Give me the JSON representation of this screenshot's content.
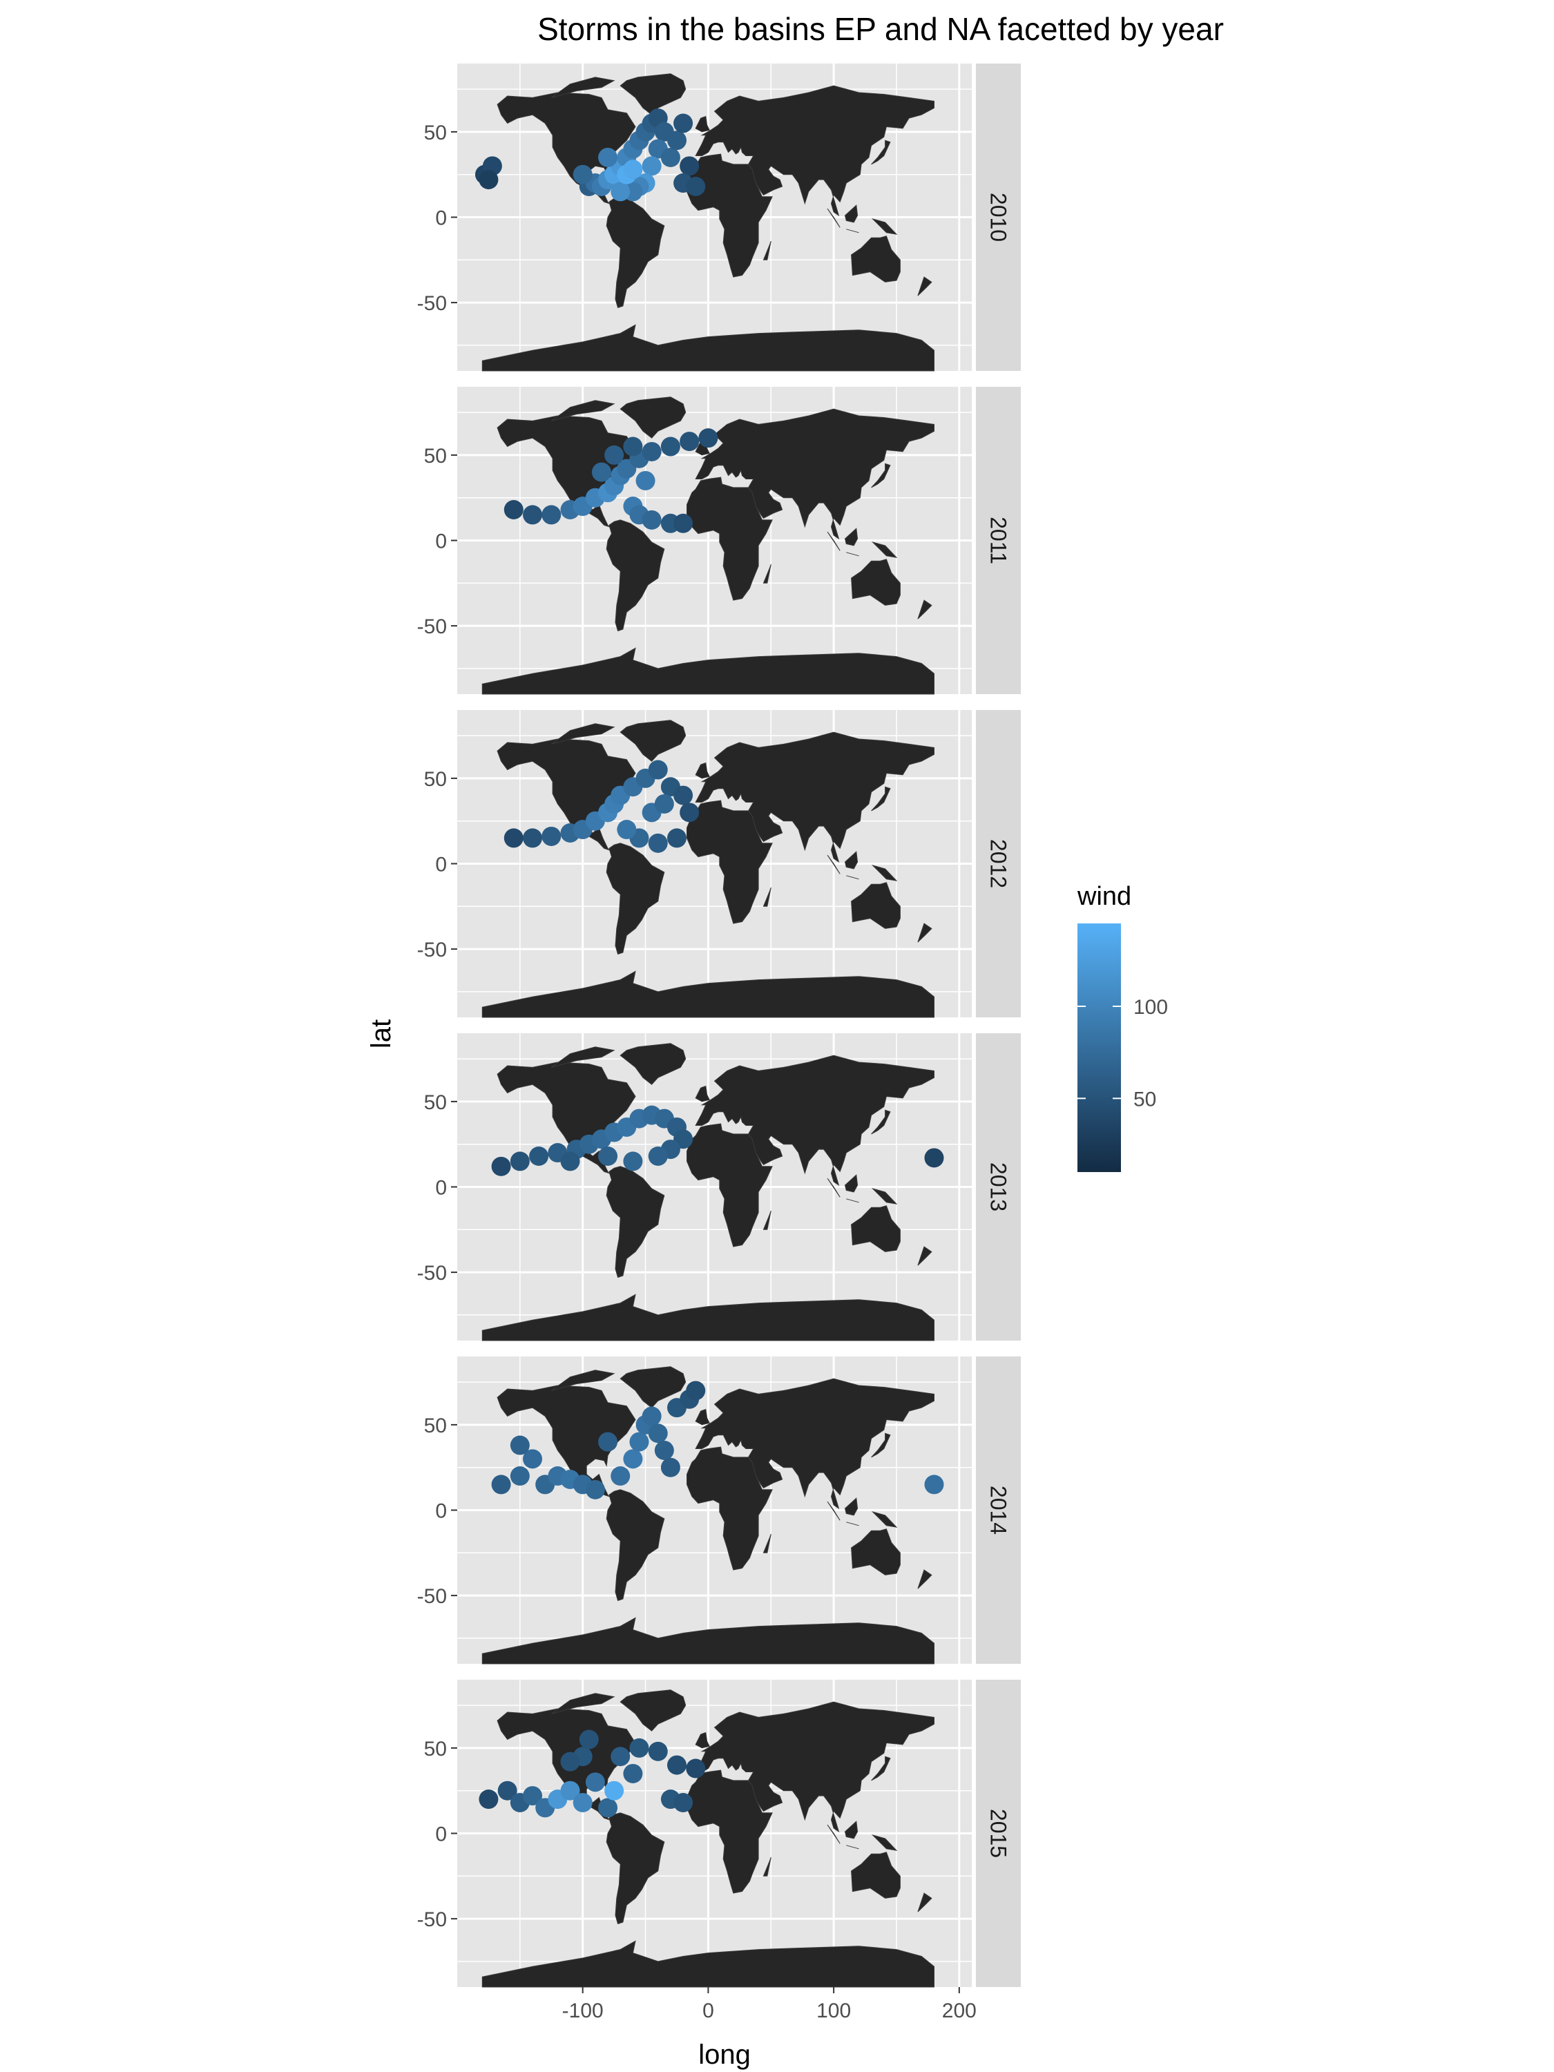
{
  "chart_data": {
    "type": "scatter",
    "title": "Storms in the basins EP and NA facetted by year",
    "xlabel": "long",
    "ylabel": "lat",
    "xlim": [
      -200,
      210
    ],
    "ylim": [
      -90,
      90
    ],
    "x_ticks": [
      -100,
      0,
      100,
      200
    ],
    "y_ticks": [
      -50,
      0,
      50
    ],
    "x_tick_labels": [
      "-100",
      "0",
      "100",
      "200"
    ],
    "y_tick_labels": [
      "-50",
      "0",
      "50"
    ],
    "grid": true,
    "facet_by": "year",
    "legend": {
      "title": "wind",
      "position": "right",
      "range": [
        10,
        145
      ],
      "ticks": [
        50,
        100
      ],
      "tick_labels": [
        "50",
        "100"
      ],
      "colors": {
        "low": "#132B43",
        "high": "#56B1F7"
      }
    },
    "colors": {
      "land": "#262626",
      "panel_bg": "#e5e5e5",
      "strip_bg": "#d9d9d9",
      "grid": "#ffffff"
    },
    "facets": [
      {
        "year": "2010",
        "points": [
          [
            -178,
            25,
            35
          ],
          [
            -172,
            30,
            40
          ],
          [
            -175,
            22,
            30
          ],
          [
            -95,
            18,
            60
          ],
          [
            -90,
            20,
            80
          ],
          [
            -85,
            18,
            90
          ],
          [
            -80,
            22,
            110
          ],
          [
            -75,
            25,
            130
          ],
          [
            -70,
            30,
            120
          ],
          [
            -65,
            35,
            100
          ],
          [
            -60,
            40,
            90
          ],
          [
            -55,
            45,
            80
          ],
          [
            -50,
            50,
            70
          ],
          [
            -45,
            55,
            60
          ],
          [
            -40,
            58,
            50
          ],
          [
            -35,
            50,
            60
          ],
          [
            -40,
            40,
            80
          ],
          [
            -45,
            30,
            110
          ],
          [
            -50,
            20,
            120
          ],
          [
            -55,
            18,
            100
          ],
          [
            -60,
            15,
            90
          ],
          [
            -30,
            35,
            70
          ],
          [
            -25,
            45,
            60
          ],
          [
            -20,
            55,
            50
          ],
          [
            -15,
            30,
            40
          ],
          [
            -20,
            20,
            50
          ],
          [
            -10,
            18,
            45
          ],
          [
            -100,
            25,
            70
          ],
          [
            -80,
            35,
            90
          ],
          [
            -70,
            15,
            110
          ],
          [
            -65,
            25,
            140
          ],
          [
            -60,
            28,
            135
          ]
        ]
      },
      {
        "year": "2011",
        "points": [
          [
            -155,
            18,
            40
          ],
          [
            -140,
            15,
            50
          ],
          [
            -125,
            15,
            60
          ],
          [
            -110,
            18,
            80
          ],
          [
            -100,
            20,
            90
          ],
          [
            -90,
            25,
            100
          ],
          [
            -80,
            28,
            110
          ],
          [
            -75,
            32,
            100
          ],
          [
            -70,
            38,
            90
          ],
          [
            -65,
            42,
            80
          ],
          [
            -55,
            48,
            70
          ],
          [
            -45,
            52,
            60
          ],
          [
            -30,
            55,
            55
          ],
          [
            -15,
            58,
            50
          ],
          [
            0,
            60,
            45
          ],
          [
            -60,
            20,
            90
          ],
          [
            -55,
            15,
            80
          ],
          [
            -45,
            12,
            70
          ],
          [
            -30,
            10,
            55
          ],
          [
            -20,
            10,
            45
          ],
          [
            -85,
            40,
            70
          ],
          [
            -75,
            50,
            60
          ],
          [
            -60,
            55,
            55
          ],
          [
            -50,
            35,
            90
          ]
        ]
      },
      {
        "year": "2012",
        "points": [
          [
            -155,
            15,
            40
          ],
          [
            -140,
            15,
            50
          ],
          [
            -125,
            16,
            60
          ],
          [
            -110,
            18,
            70
          ],
          [
            -100,
            20,
            80
          ],
          [
            -90,
            25,
            90
          ],
          [
            -80,
            30,
            100
          ],
          [
            -75,
            35,
            95
          ],
          [
            -70,
            40,
            90
          ],
          [
            -60,
            45,
            80
          ],
          [
            -50,
            50,
            70
          ],
          [
            -40,
            55,
            60
          ],
          [
            -30,
            45,
            55
          ],
          [
            -20,
            40,
            50
          ],
          [
            -15,
            30,
            45
          ],
          [
            -25,
            15,
            50
          ],
          [
            -40,
            12,
            60
          ],
          [
            -55,
            15,
            70
          ],
          [
            -65,
            20,
            85
          ],
          [
            -45,
            30,
            80
          ],
          [
            -35,
            35,
            70
          ]
        ]
      },
      {
        "year": "2013",
        "points": [
          [
            -165,
            12,
            40
          ],
          [
            -150,
            15,
            50
          ],
          [
            -135,
            18,
            55
          ],
          [
            -120,
            20,
            60
          ],
          [
            -105,
            22,
            65
          ],
          [
            -95,
            25,
            70
          ],
          [
            -85,
            28,
            75
          ],
          [
            -75,
            32,
            80
          ],
          [
            -65,
            35,
            85
          ],
          [
            -55,
            40,
            80
          ],
          [
            -45,
            42,
            75
          ],
          [
            -35,
            40,
            70
          ],
          [
            -25,
            35,
            60
          ],
          [
            -20,
            28,
            55
          ],
          [
            -30,
            22,
            60
          ],
          [
            -40,
            18,
            65
          ],
          [
            -60,
            15,
            70
          ],
          [
            -80,
            18,
            65
          ],
          [
            -110,
            15,
            55
          ],
          [
            180,
            17,
            35
          ]
        ]
      },
      {
        "year": "2014",
        "points": [
          [
            -165,
            15,
            60
          ],
          [
            -150,
            20,
            70
          ],
          [
            -140,
            30,
            75
          ],
          [
            -150,
            38,
            65
          ],
          [
            -130,
            15,
            70
          ],
          [
            -120,
            20,
            80
          ],
          [
            -110,
            18,
            85
          ],
          [
            -100,
            15,
            75
          ],
          [
            -90,
            12,
            70
          ],
          [
            -70,
            20,
            80
          ],
          [
            -60,
            30,
            90
          ],
          [
            -55,
            40,
            85
          ],
          [
            -50,
            50,
            80
          ],
          [
            -45,
            55,
            75
          ],
          [
            -40,
            45,
            70
          ],
          [
            -35,
            35,
            65
          ],
          [
            -30,
            25,
            60
          ],
          [
            -25,
            60,
            55
          ],
          [
            -15,
            65,
            50
          ],
          [
            -10,
            70,
            45
          ],
          [
            -80,
            40,
            60
          ],
          [
            180,
            15,
            80
          ]
        ]
      },
      {
        "year": "2015",
        "points": [
          [
            -175,
            20,
            40
          ],
          [
            -160,
            25,
            50
          ],
          [
            -150,
            18,
            60
          ],
          [
            -140,
            22,
            70
          ],
          [
            -130,
            15,
            80
          ],
          [
            -120,
            20,
            120
          ],
          [
            -110,
            25,
            110
          ],
          [
            -100,
            18,
            100
          ],
          [
            -90,
            30,
            80
          ],
          [
            -80,
            15,
            70
          ],
          [
            -75,
            25,
            140
          ],
          [
            -70,
            45,
            60
          ],
          [
            -55,
            50,
            55
          ],
          [
            -40,
            48,
            50
          ],
          [
            -25,
            40,
            45
          ],
          [
            -10,
            38,
            40
          ],
          [
            -30,
            20,
            55
          ],
          [
            -20,
            18,
            50
          ],
          [
            -100,
            45,
            55
          ],
          [
            -95,
            55,
            50
          ],
          [
            -110,
            42,
            50
          ],
          [
            -60,
            35,
            65
          ]
        ]
      }
    ]
  }
}
